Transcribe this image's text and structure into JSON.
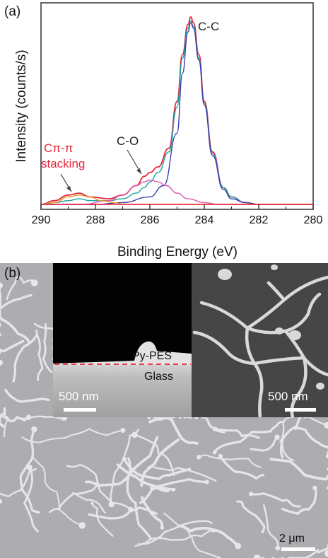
{
  "panel_a": {
    "label": "(a)",
    "annotations": {
      "cc": "C-C",
      "co": "C-O",
      "cpi_line1": "Cπ-π",
      "cpi_line2": "stacking"
    },
    "colors": {
      "envelope": "#e8243c",
      "fit_total": "#1aa6a0",
      "component_cc": "#3a3fb0",
      "component_co": "#e056b0",
      "component_pi": "#e89a2a",
      "background": "#e8243c"
    }
  },
  "chart_data": {
    "type": "line",
    "title": "",
    "xlabel": "Binding Energy (eV)",
    "ylabel": "Intensity (counts/s)",
    "xlim": [
      290,
      280
    ],
    "x_reversed": true,
    "x_ticks": [
      290,
      288,
      286,
      284,
      282,
      280
    ],
    "y_ticks_shown": false,
    "peaks": [
      {
        "name": "C-C",
        "center": 284.5
      },
      {
        "name": "C-O",
        "center": 286.0
      },
      {
        "name": "Cπ-π stacking",
        "center": 288.6
      }
    ],
    "series": [
      {
        "key": "measured",
        "x": [
          290,
          289.5,
          289,
          288.6,
          288.2,
          287.5,
          287,
          286.5,
          286.2,
          286,
          285.7,
          285.3,
          285,
          284.8,
          284.6,
          284.5,
          284.4,
          284.2,
          284,
          283.7,
          283.3,
          283,
          282.5,
          282,
          281,
          280
        ],
        "y": [
          0.0,
          0.02,
          0.05,
          0.06,
          0.04,
          0.03,
          0.05,
          0.1,
          0.15,
          0.17,
          0.2,
          0.3,
          0.55,
          0.8,
          0.96,
          1.0,
          0.97,
          0.8,
          0.55,
          0.28,
          0.09,
          0.04,
          0.01,
          0.0,
          0.0,
          0.0
        ]
      },
      {
        "key": "fit_total",
        "x": [
          290,
          289.5,
          289,
          288.6,
          288.2,
          287.5,
          287,
          286.5,
          286.2,
          286,
          285.7,
          285.3,
          285,
          284.8,
          284.6,
          284.5,
          284.4,
          284.2,
          284,
          283.7,
          283.3,
          283,
          282.5,
          282,
          281,
          280
        ],
        "y": [
          0.0,
          0.01,
          0.02,
          0.03,
          0.02,
          0.02,
          0.03,
          0.06,
          0.09,
          0.12,
          0.17,
          0.28,
          0.52,
          0.78,
          0.94,
          0.98,
          0.95,
          0.78,
          0.54,
          0.27,
          0.09,
          0.04,
          0.01,
          0.0,
          0.0,
          0.0
        ]
      },
      {
        "key": "component_cc",
        "x": [
          290,
          288,
          287,
          286,
          285.5,
          285,
          284.8,
          284.6,
          284.5,
          284.4,
          284.2,
          284,
          283.7,
          283.3,
          283,
          282.5,
          282,
          280
        ],
        "y": [
          0.0,
          0.0,
          0.01,
          0.04,
          0.1,
          0.38,
          0.7,
          0.92,
          0.97,
          0.94,
          0.77,
          0.53,
          0.26,
          0.08,
          0.03,
          0.01,
          0.0,
          0.0
        ]
      },
      {
        "key": "component_co",
        "x": [
          290,
          288.5,
          287.5,
          287,
          286.5,
          286.2,
          286,
          285.7,
          285.4,
          285,
          284.6,
          284,
          283.5,
          283,
          282,
          280
        ],
        "y": [
          0.0,
          0.0,
          0.02,
          0.05,
          0.1,
          0.12,
          0.13,
          0.12,
          0.1,
          0.06,
          0.03,
          0.01,
          0.0,
          0.0,
          0.0,
          0.0
        ]
      },
      {
        "key": "component_pi",
        "x": [
          290,
          289.5,
          289,
          288.6,
          288.2,
          287.8,
          287.3,
          287,
          286.5,
          286,
          280
        ],
        "y": [
          0.0,
          0.01,
          0.04,
          0.05,
          0.04,
          0.02,
          0.01,
          0.0,
          0.0,
          0.0,
          0.0
        ]
      },
      {
        "key": "baseline",
        "x": [
          290,
          285,
          280
        ],
        "y": [
          0.0,
          0.0,
          0.0
        ]
      }
    ]
  },
  "panel_b": {
    "label": "(b)",
    "inset_left": {
      "top_label": "Py-PES",
      "bottom_label": "Glass",
      "scale_text": "500 nm"
    },
    "inset_right": {
      "scale_text": "500 nm"
    },
    "main_scale_text": "2 μm"
  }
}
